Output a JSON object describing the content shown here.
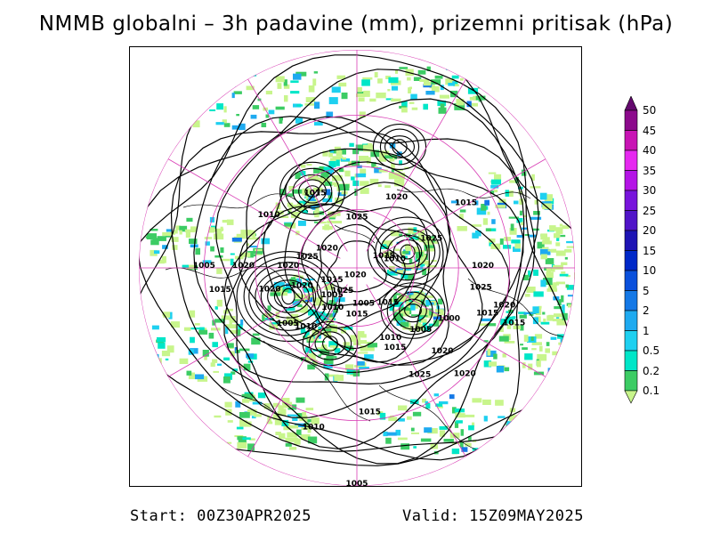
{
  "title": "NMMB globalni – 3h padavine (mm), prizemni pritisak (hPa)",
  "footer": {
    "start": "Start: 00Z30APR2025",
    "valid": "Valid: 15Z09MAY2025"
  },
  "colorbar": {
    "unit": "mm",
    "levels": [
      "0.1",
      "0.2",
      "0.5",
      "1",
      "2",
      "5",
      "10",
      "15",
      "20",
      "25",
      "30",
      "35",
      "40",
      "45",
      "50"
    ],
    "colors": [
      "#c8f58c",
      "#3ccc64",
      "#00e6c8",
      "#1ed0f0",
      "#1eaaf0",
      "#1478e6",
      "#0a50dc",
      "#0028c8",
      "#1e14b4",
      "#5014c8",
      "#7814dc",
      "#b414e6",
      "#e628f0",
      "#c814b4",
      "#8c0a8c",
      "#640a6e"
    ]
  },
  "map": {
    "projection": "north polar stereographic",
    "isobar_labels": [
      {
        "value": "1025",
        "lon": 180,
        "lat": 65
      },
      {
        "value": "1015",
        "lon": 150,
        "lat": 48
      },
      {
        "value": "1020",
        "lon": -150,
        "lat": 50
      },
      {
        "value": "1020",
        "lon": 120,
        "lat": 72
      },
      {
        "value": "1025",
        "lon": 100,
        "lat": 64
      },
      {
        "value": "1020",
        "lon": 90,
        "lat": 55
      },
      {
        "value": "1010",
        "lon": 120,
        "lat": 40
      },
      {
        "value": "1020",
        "lon": 75,
        "lat": 45
      },
      {
        "value": "1015",
        "lon": -120,
        "lat": 30
      },
      {
        "value": "1025",
        "lon": -110,
        "lat": 50
      },
      {
        "value": "1010",
        "lon": -100,
        "lat": 70
      },
      {
        "value": "1015",
        "lon": -110,
        "lat": 75
      },
      {
        "value": "1025",
        "lon": 30,
        "lat": 75
      },
      {
        "value": "1020",
        "lon": 10,
        "lat": 85
      },
      {
        "value": "1015",
        "lon": 60,
        "lat": 75
      },
      {
        "value": "1005",
        "lon": 40,
        "lat": 70
      },
      {
        "value": "1020",
        "lon": 70,
        "lat": 60
      },
      {
        "value": "1020",
        "lon": 90,
        "lat": 35
      },
      {
        "value": "1005",
        "lon": 90,
        "lat": 20
      },
      {
        "value": "1015",
        "lon": 80,
        "lat": 25
      },
      {
        "value": "1020",
        "lon": -90,
        "lat": 30
      },
      {
        "value": "1025",
        "lon": -80,
        "lat": 30
      },
      {
        "value": "1015",
        "lon": -70,
        "lat": 25
      },
      {
        "value": "1020",
        "lon": -75,
        "lat": 20
      },
      {
        "value": "1000",
        "lon": -60,
        "lat": 38
      },
      {
        "value": "1005",
        "lon": -45,
        "lat": 45
      },
      {
        "value": "1015",
        "lon": -40,
        "lat": 65
      },
      {
        "value": "1015",
        "lon": -70,
        "lat": 15
      },
      {
        "value": "1020",
        "lon": -45,
        "lat": 32
      },
      {
        "value": "1005",
        "lon": -10,
        "lat": 70
      },
      {
        "value": "1010",
        "lon": 30,
        "lat": 65
      },
      {
        "value": "1015",
        "lon": 0,
        "lat": 65
      },
      {
        "value": "1010",
        "lon": -25,
        "lat": 50
      },
      {
        "value": "1015",
        "lon": -25,
        "lat": 45
      },
      {
        "value": "1010",
        "lon": 40,
        "lat": 50
      },
      {
        "value": "1005",
        "lon": 50,
        "lat": 45
      },
      {
        "value": "1020",
        "lon": -45,
        "lat": 20
      },
      {
        "value": "1025",
        "lon": -30,
        "lat": 30
      },
      {
        "value": "1015",
        "lon": -5,
        "lat": 22
      },
      {
        "value": "1010",
        "lon": 15,
        "lat": 15
      },
      {
        "value": "1005",
        "lon": 0,
        "lat": 0
      }
    ]
  }
}
